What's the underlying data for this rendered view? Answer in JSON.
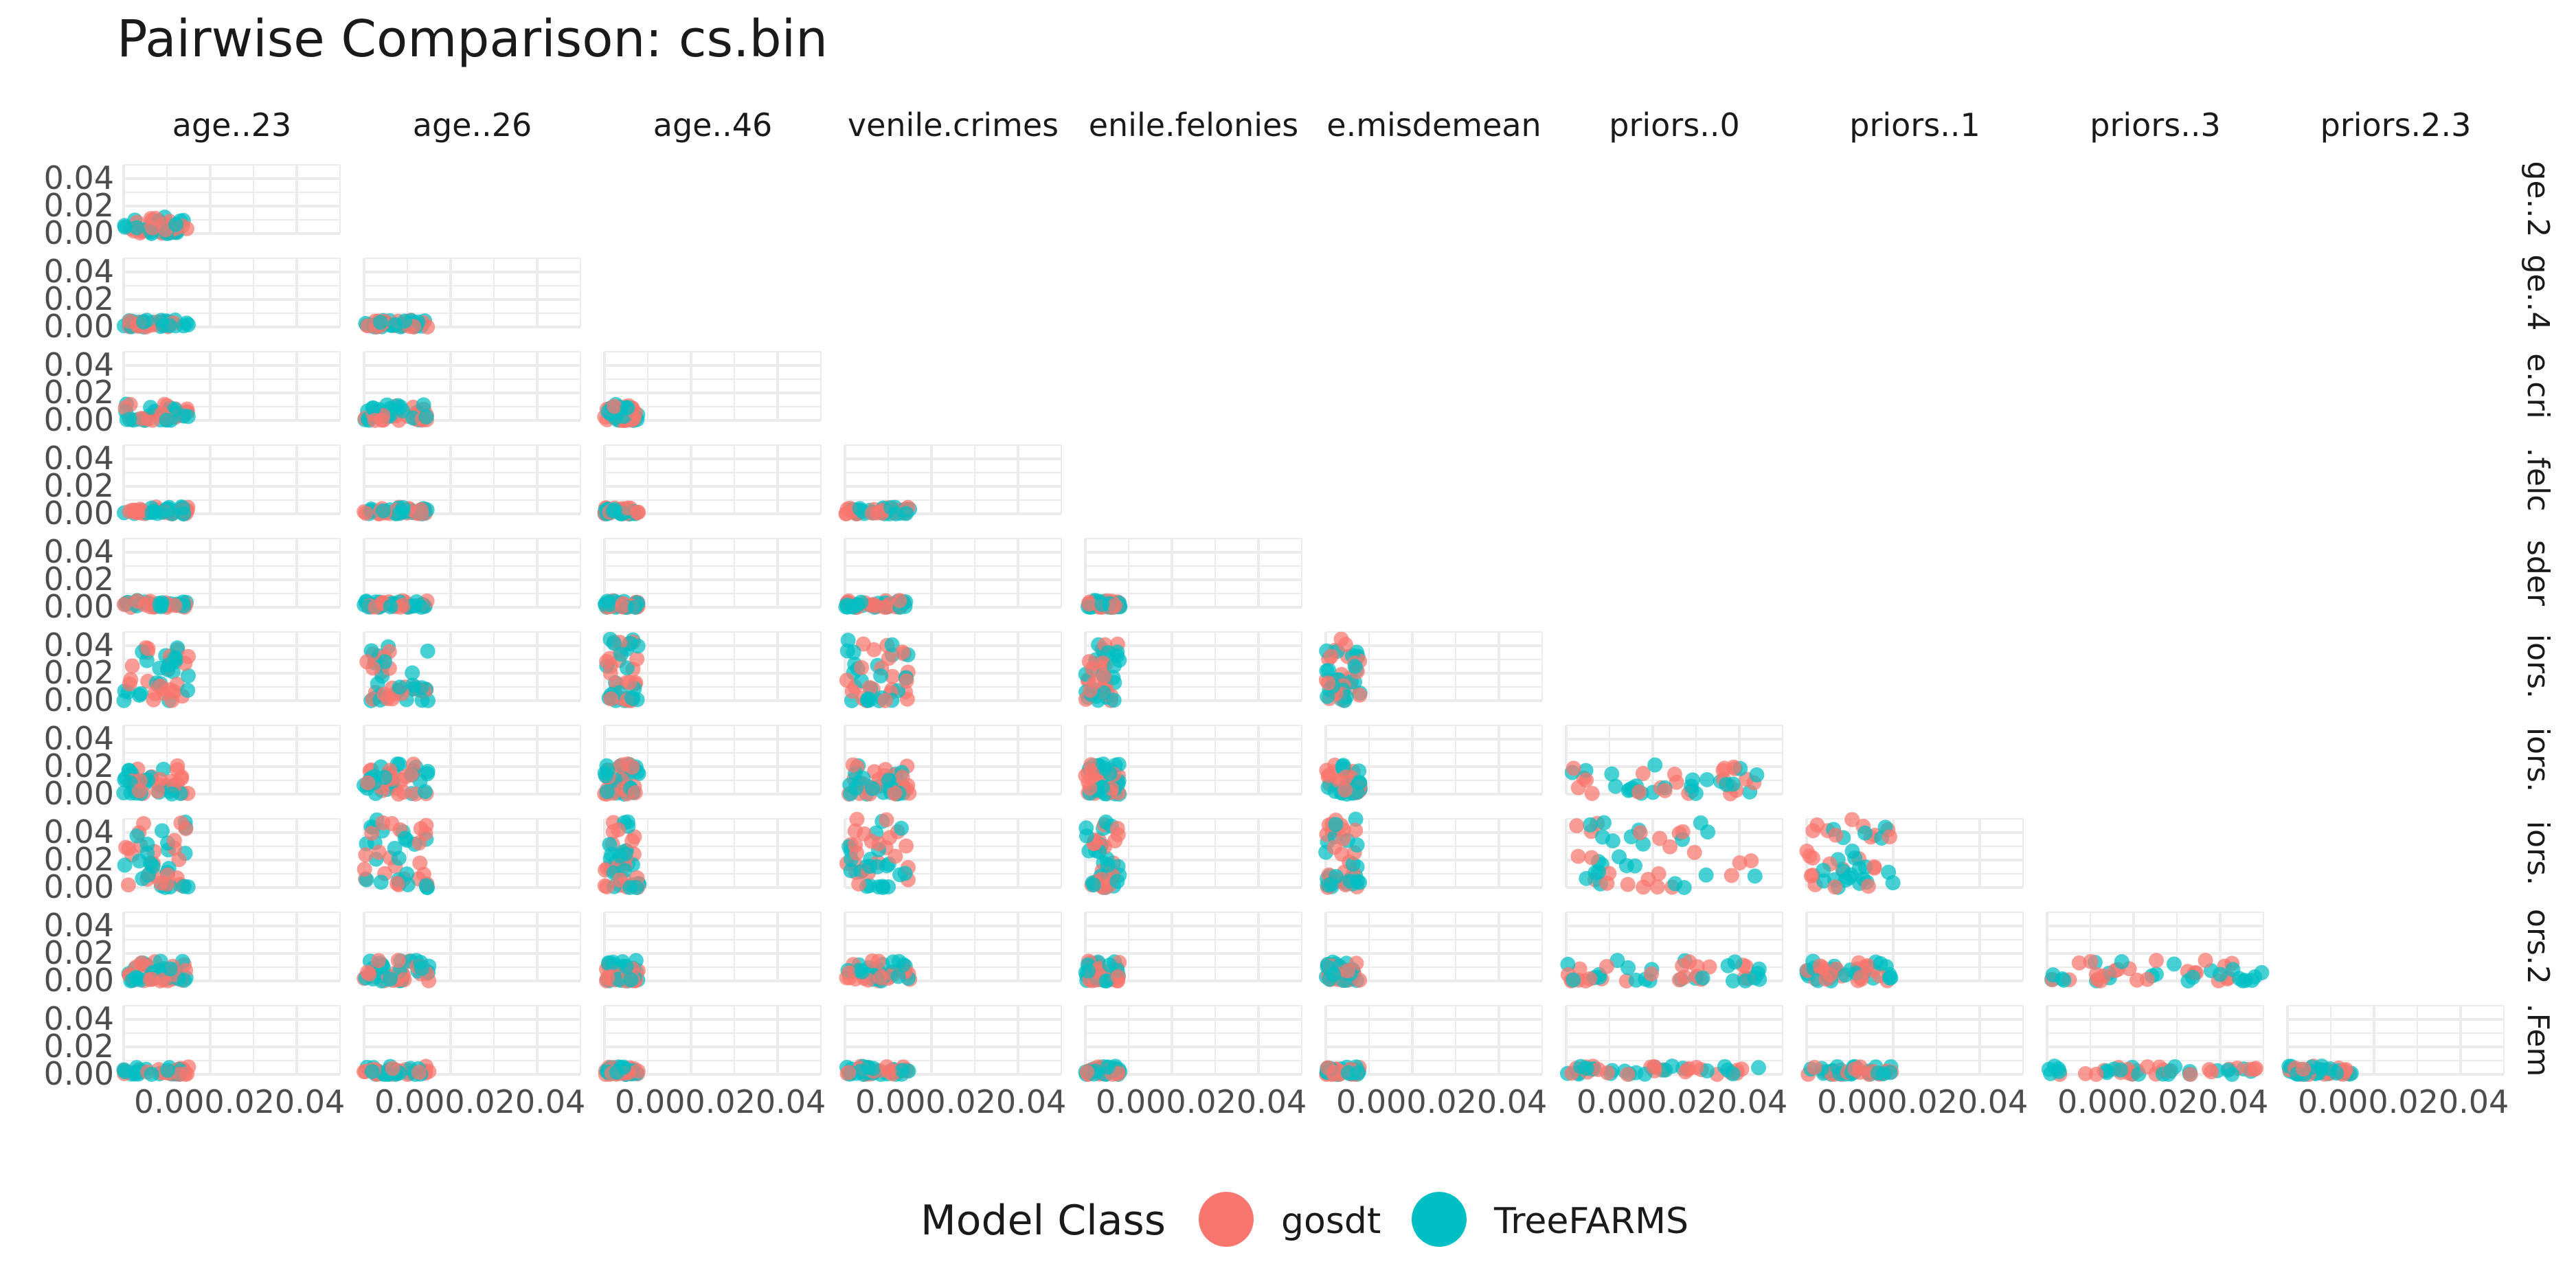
{
  "chart_data": {
    "type": "scatter",
    "title": "Pairwise Comparison: cs.bin",
    "column_labels": [
      "age..23",
      "age..26",
      "age..46",
      "juvenile.crimes",
      "juvenile.felonies",
      "juvenile.misdemeanors",
      "priors..0",
      "priors..1",
      "priors..3",
      "priors.2.3"
    ],
    "column_labels_visible": [
      "age..23",
      "age..26",
      "age..46",
      "venile.crimes",
      "enile.felonies",
      "e.misdemean",
      "priors..0",
      "priors..1",
      "priors..3",
      "priors.2.3"
    ],
    "row_labels_visible": [
      "ge..2",
      "ge..4",
      "e.cri",
      ".felc",
      "sder",
      "iors.",
      "iors.",
      "iors.",
      "ors.2",
      ".Fem"
    ],
    "y_ticks": [
      "0.04",
      "0.02",
      "0.00"
    ],
    "x_ticks": [
      "0.00",
      "0.02",
      "0.04"
    ],
    "x_tick_text": "0.000.020.04",
    "axis_range": [
      0,
      0.05
    ],
    "grid": true,
    "legend": {
      "title": "Model Class",
      "position": "bottom",
      "entries": [
        {
          "name": "gosdt",
          "color": "#F8766D"
        },
        {
          "name": "TreeFARMS",
          "color": "#00BFC4"
        }
      ]
    },
    "panels": [
      {
        "row": 0,
        "col": 0,
        "x_max": 0.015,
        "y_max": 0.012
      },
      {
        "row": 1,
        "col": 0,
        "x_max": 0.015,
        "y_max": 0.005
      },
      {
        "row": 1,
        "col": 1,
        "x_max": 0.015,
        "y_max": 0.005
      },
      {
        "row": 2,
        "col": 0,
        "x_max": 0.015,
        "y_max": 0.012
      },
      {
        "row": 2,
        "col": 1,
        "x_max": 0.015,
        "y_max": 0.012
      },
      {
        "row": 2,
        "col": 2,
        "x_max": 0.008,
        "y_max": 0.012
      },
      {
        "row": 3,
        "col": 0,
        "x_max": 0.015,
        "y_max": 0.005
      },
      {
        "row": 3,
        "col": 1,
        "x_max": 0.015,
        "y_max": 0.005
      },
      {
        "row": 3,
        "col": 2,
        "x_max": 0.008,
        "y_max": 0.005
      },
      {
        "row": 3,
        "col": 3,
        "x_max": 0.015,
        "y_max": 0.005
      },
      {
        "row": 4,
        "col": 0,
        "x_max": 0.015,
        "y_max": 0.005
      },
      {
        "row": 4,
        "col": 1,
        "x_max": 0.015,
        "y_max": 0.005
      },
      {
        "row": 4,
        "col": 2,
        "x_max": 0.008,
        "y_max": 0.005
      },
      {
        "row": 4,
        "col": 3,
        "x_max": 0.015,
        "y_max": 0.005
      },
      {
        "row": 4,
        "col": 4,
        "x_max": 0.008,
        "y_max": 0.005
      },
      {
        "row": 5,
        "col": 0,
        "x_max": 0.015,
        "y_max": 0.045
      },
      {
        "row": 5,
        "col": 1,
        "x_max": 0.015,
        "y_max": 0.045
      },
      {
        "row": 5,
        "col": 2,
        "x_max": 0.008,
        "y_max": 0.045
      },
      {
        "row": 5,
        "col": 3,
        "x_max": 0.015,
        "y_max": 0.045
      },
      {
        "row": 5,
        "col": 4,
        "x_max": 0.008,
        "y_max": 0.045
      },
      {
        "row": 5,
        "col": 5,
        "x_max": 0.008,
        "y_max": 0.045
      },
      {
        "row": 6,
        "col": 0,
        "x_max": 0.015,
        "y_max": 0.022
      },
      {
        "row": 6,
        "col": 1,
        "x_max": 0.015,
        "y_max": 0.022
      },
      {
        "row": 6,
        "col": 2,
        "x_max": 0.008,
        "y_max": 0.022
      },
      {
        "row": 6,
        "col": 3,
        "x_max": 0.015,
        "y_max": 0.022
      },
      {
        "row": 6,
        "col": 4,
        "x_max": 0.008,
        "y_max": 0.022
      },
      {
        "row": 6,
        "col": 5,
        "x_max": 0.008,
        "y_max": 0.022
      },
      {
        "row": 6,
        "col": 6,
        "x_max": 0.045,
        "y_max": 0.022
      },
      {
        "row": 7,
        "col": 0,
        "x_max": 0.015,
        "y_max": 0.05
      },
      {
        "row": 7,
        "col": 1,
        "x_max": 0.015,
        "y_max": 0.05
      },
      {
        "row": 7,
        "col": 2,
        "x_max": 0.008,
        "y_max": 0.05
      },
      {
        "row": 7,
        "col": 3,
        "x_max": 0.015,
        "y_max": 0.05
      },
      {
        "row": 7,
        "col": 4,
        "x_max": 0.008,
        "y_max": 0.05
      },
      {
        "row": 7,
        "col": 5,
        "x_max": 0.008,
        "y_max": 0.05
      },
      {
        "row": 7,
        "col": 6,
        "x_max": 0.045,
        "y_max": 0.05
      },
      {
        "row": 7,
        "col": 7,
        "x_max": 0.02,
        "y_max": 0.05
      },
      {
        "row": 8,
        "col": 0,
        "x_max": 0.015,
        "y_max": 0.015
      },
      {
        "row": 8,
        "col": 1,
        "x_max": 0.015,
        "y_max": 0.015
      },
      {
        "row": 8,
        "col": 2,
        "x_max": 0.008,
        "y_max": 0.015
      },
      {
        "row": 8,
        "col": 3,
        "x_max": 0.015,
        "y_max": 0.015
      },
      {
        "row": 8,
        "col": 4,
        "x_max": 0.008,
        "y_max": 0.015
      },
      {
        "row": 8,
        "col": 5,
        "x_max": 0.008,
        "y_max": 0.015
      },
      {
        "row": 8,
        "col": 6,
        "x_max": 0.045,
        "y_max": 0.015
      },
      {
        "row": 8,
        "col": 7,
        "x_max": 0.02,
        "y_max": 0.015
      },
      {
        "row": 8,
        "col": 8,
        "x_max": 0.05,
        "y_max": 0.015
      },
      {
        "row": 9,
        "col": 0,
        "x_max": 0.015,
        "y_max": 0.006
      },
      {
        "row": 9,
        "col": 1,
        "x_max": 0.015,
        "y_max": 0.006
      },
      {
        "row": 9,
        "col": 2,
        "x_max": 0.008,
        "y_max": 0.006
      },
      {
        "row": 9,
        "col": 3,
        "x_max": 0.015,
        "y_max": 0.006
      },
      {
        "row": 9,
        "col": 4,
        "x_max": 0.008,
        "y_max": 0.006
      },
      {
        "row": 9,
        "col": 5,
        "x_max": 0.008,
        "y_max": 0.006
      },
      {
        "row": 9,
        "col": 6,
        "x_max": 0.045,
        "y_max": 0.006
      },
      {
        "row": 9,
        "col": 7,
        "x_max": 0.02,
        "y_max": 0.006
      },
      {
        "row": 9,
        "col": 8,
        "x_max": 0.05,
        "y_max": 0.006
      },
      {
        "row": 9,
        "col": 9,
        "x_max": 0.015,
        "y_max": 0.006
      }
    ]
  }
}
